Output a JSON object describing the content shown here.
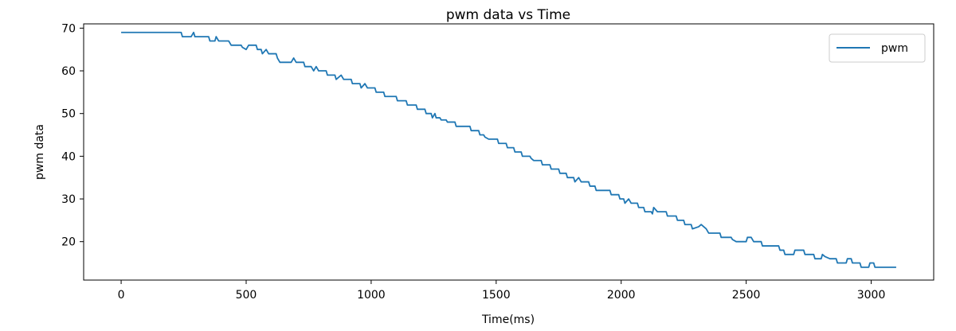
{
  "chart_data": {
    "type": "line",
    "title": "pwm data vs Time",
    "xlabel": "Time(ms)",
    "ylabel": "pwm data",
    "xlim": [
      -150,
      3250
    ],
    "ylim": [
      11,
      71
    ],
    "x_ticks": [
      0,
      500,
      1000,
      1500,
      2000,
      2500,
      3000
    ],
    "y_ticks": [
      20,
      30,
      40,
      50,
      60,
      70
    ],
    "grid": false,
    "legend_position": "top-right",
    "series": [
      {
        "name": "pwm",
        "color": "#1f77b4",
        "points": [
          [
            0,
            69
          ],
          [
            240,
            69
          ],
          [
            245,
            68
          ],
          [
            280,
            68
          ],
          [
            290,
            69
          ],
          [
            295,
            68
          ],
          [
            350,
            68
          ],
          [
            355,
            67
          ],
          [
            375,
            67
          ],
          [
            380,
            68
          ],
          [
            390,
            67
          ],
          [
            430,
            67
          ],
          [
            440,
            66
          ],
          [
            480,
            66
          ],
          [
            485,
            65.5
          ],
          [
            500,
            65
          ],
          [
            510,
            66
          ],
          [
            540,
            66
          ],
          [
            545,
            65
          ],
          [
            560,
            65
          ],
          [
            565,
            64
          ],
          [
            580,
            65
          ],
          [
            590,
            64
          ],
          [
            620,
            64
          ],
          [
            625,
            63
          ],
          [
            635,
            62
          ],
          [
            680,
            62
          ],
          [
            690,
            63
          ],
          [
            700,
            62
          ],
          [
            730,
            62
          ],
          [
            735,
            61
          ],
          [
            760,
            61
          ],
          [
            770,
            60
          ],
          [
            780,
            61
          ],
          [
            790,
            60
          ],
          [
            820,
            60
          ],
          [
            825,
            59
          ],
          [
            855,
            59
          ],
          [
            860,
            58
          ],
          [
            880,
            59
          ],
          [
            890,
            58
          ],
          [
            920,
            58
          ],
          [
            925,
            57
          ],
          [
            955,
            57
          ],
          [
            960,
            56
          ],
          [
            975,
            57
          ],
          [
            985,
            56
          ],
          [
            1015,
            56
          ],
          [
            1020,
            55
          ],
          [
            1050,
            55
          ],
          [
            1055,
            54
          ],
          [
            1100,
            54
          ],
          [
            1105,
            53
          ],
          [
            1140,
            53
          ],
          [
            1145,
            52
          ],
          [
            1180,
            52
          ],
          [
            1185,
            51
          ],
          [
            1215,
            51
          ],
          [
            1220,
            50
          ],
          [
            1240,
            50
          ],
          [
            1245,
            49
          ],
          [
            1255,
            50
          ],
          [
            1260,
            49
          ],
          [
            1275,
            49
          ],
          [
            1280,
            48.5
          ],
          [
            1300,
            48.5
          ],
          [
            1305,
            48
          ],
          [
            1335,
            48
          ],
          [
            1340,
            47
          ],
          [
            1395,
            47
          ],
          [
            1400,
            46
          ],
          [
            1430,
            46
          ],
          [
            1435,
            45
          ],
          [
            1450,
            45
          ],
          [
            1455,
            44.5
          ],
          [
            1470,
            44
          ],
          [
            1505,
            44
          ],
          [
            1510,
            43
          ],
          [
            1540,
            43
          ],
          [
            1545,
            42
          ],
          [
            1570,
            42
          ],
          [
            1575,
            41
          ],
          [
            1600,
            41
          ],
          [
            1605,
            40
          ],
          [
            1635,
            40
          ],
          [
            1640,
            39.5
          ],
          [
            1650,
            39
          ],
          [
            1680,
            39
          ],
          [
            1685,
            38
          ],
          [
            1715,
            38
          ],
          [
            1720,
            37
          ],
          [
            1750,
            37
          ],
          [
            1755,
            36
          ],
          [
            1780,
            36
          ],
          [
            1785,
            35
          ],
          [
            1810,
            35
          ],
          [
            1815,
            34
          ],
          [
            1830,
            35
          ],
          [
            1840,
            34
          ],
          [
            1870,
            34
          ],
          [
            1875,
            33
          ],
          [
            1895,
            33
          ],
          [
            1900,
            32
          ],
          [
            1955,
            32
          ],
          [
            1960,
            31
          ],
          [
            1990,
            31
          ],
          [
            1995,
            30
          ],
          [
            2010,
            30
          ],
          [
            2015,
            29
          ],
          [
            2030,
            30
          ],
          [
            2040,
            29
          ],
          [
            2065,
            29
          ],
          [
            2070,
            28
          ],
          [
            2090,
            28
          ],
          [
            2095,
            27
          ],
          [
            2120,
            27
          ],
          [
            2125,
            26.5
          ],
          [
            2130,
            28
          ],
          [
            2145,
            27
          ],
          [
            2180,
            27
          ],
          [
            2185,
            26
          ],
          [
            2220,
            26
          ],
          [
            2225,
            25
          ],
          [
            2250,
            25
          ],
          [
            2255,
            24
          ],
          [
            2280,
            24
          ],
          [
            2285,
            23
          ],
          [
            2310,
            23.5
          ],
          [
            2320,
            24
          ],
          [
            2340,
            23
          ],
          [
            2350,
            22
          ],
          [
            2395,
            22
          ],
          [
            2400,
            21
          ],
          [
            2440,
            21
          ],
          [
            2445,
            20.5
          ],
          [
            2460,
            20
          ],
          [
            2500,
            20
          ],
          [
            2505,
            21
          ],
          [
            2520,
            21
          ],
          [
            2530,
            20
          ],
          [
            2560,
            20
          ],
          [
            2565,
            19
          ],
          [
            2630,
            19
          ],
          [
            2635,
            18
          ],
          [
            2650,
            18
          ],
          [
            2655,
            17
          ],
          [
            2690,
            17
          ],
          [
            2695,
            18
          ],
          [
            2730,
            18
          ],
          [
            2735,
            17
          ],
          [
            2770,
            17
          ],
          [
            2775,
            16
          ],
          [
            2800,
            16
          ],
          [
            2805,
            17
          ],
          [
            2815,
            16.5
          ],
          [
            2835,
            16
          ],
          [
            2860,
            16
          ],
          [
            2865,
            15
          ],
          [
            2900,
            15
          ],
          [
            2905,
            16
          ],
          [
            2920,
            16
          ],
          [
            2925,
            15
          ],
          [
            2955,
            15
          ],
          [
            2960,
            14
          ],
          [
            2990,
            14
          ],
          [
            2995,
            15
          ],
          [
            3010,
            15
          ],
          [
            3015,
            14
          ],
          [
            3100,
            14
          ]
        ]
      }
    ]
  }
}
